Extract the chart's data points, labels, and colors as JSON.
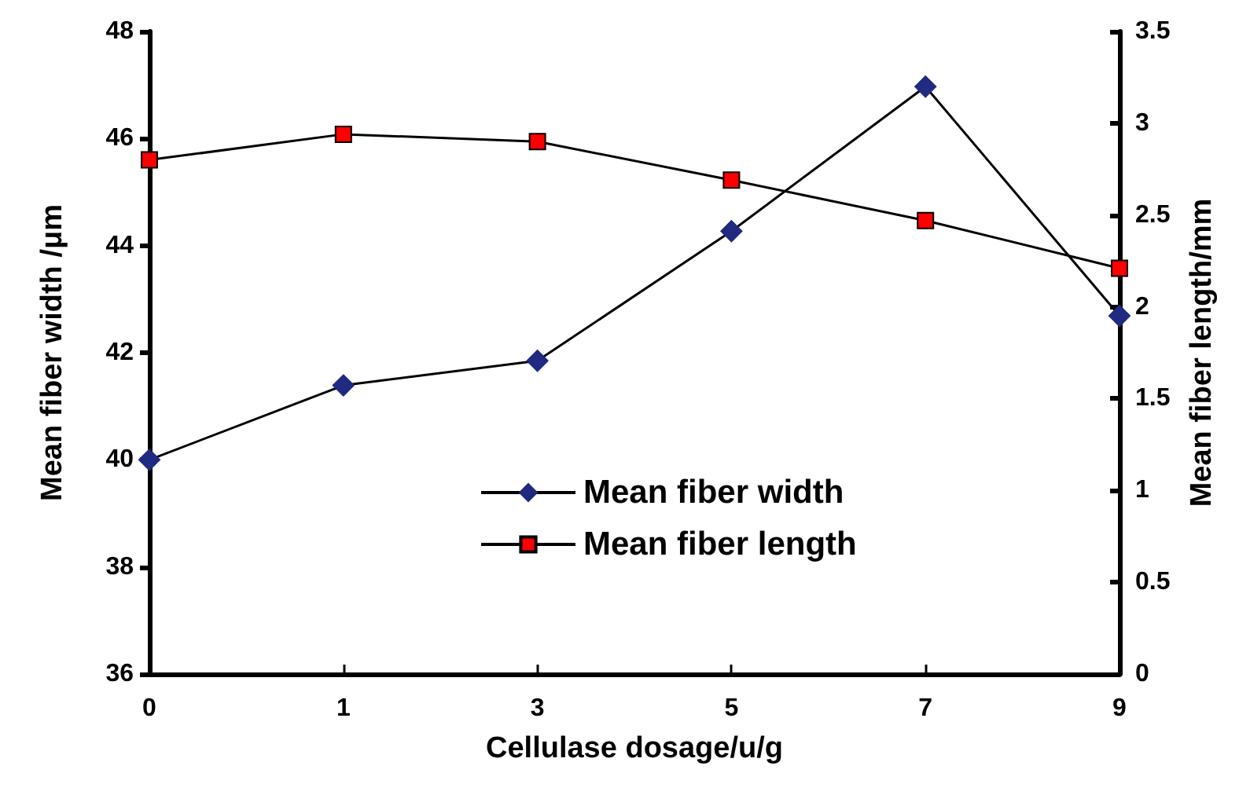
{
  "chart_data": {
    "type": "line",
    "xlabel": "Cellulase dosage/u/g",
    "ylabel": "Mean fiber width /μm",
    "y2label": "Mean fiber length/mm",
    "categories": [
      "0",
      "1",
      "3",
      "5",
      "7",
      "9"
    ],
    "series": [
      {
        "name": "Mean fiber width",
        "color": "#1f2a80",
        "marker": "diamond",
        "values": [
          40.0,
          41.39,
          41.85,
          44.27,
          46.97,
          42.69
        ]
      },
      {
        "name": "Mean fiber length",
        "color": "#ff0000",
        "marker": "square",
        "axis": "y2",
        "values": [
          2.8,
          2.94,
          2.9,
          2.69,
          2.47,
          2.21
        ]
      }
    ],
    "ylim": [
      36,
      48
    ],
    "yticks": [
      36,
      38,
      40,
      42,
      44,
      46,
      48
    ],
    "y2lim": [
      0,
      3.5
    ],
    "y2ticks": [
      0,
      0.5,
      1,
      1.5,
      2,
      2.5,
      3,
      3.5
    ],
    "grid": false,
    "legend": "bottom right",
    "line_style": "solid"
  }
}
